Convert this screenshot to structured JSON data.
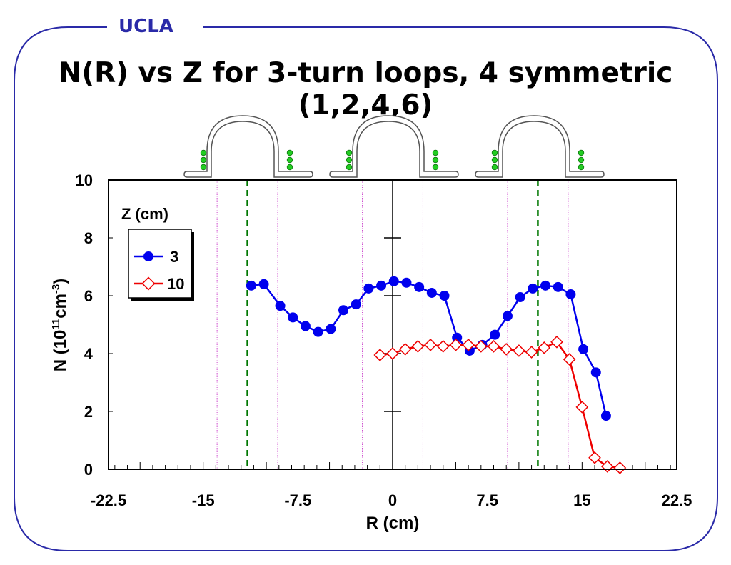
{
  "header": {
    "org_label": "UCLA",
    "title": "N(R) vs Z for 3-turn loops, 4 symmetric (1,2,4,6)"
  },
  "colors": {
    "frame": "#2a2aa8",
    "series_3": "#0000ee",
    "series_10": "#ee0000",
    "guide_green": "#007700",
    "guide_magenta": "#cc44cc",
    "loop_dots": "#22cc22"
  },
  "icons": [
    "loop-antenna-icon",
    "loop-antenna-icon",
    "loop-antenna-icon"
  ],
  "chart_data": {
    "type": "line",
    "xlabel": "R (cm)",
    "ylabel_main": "N (10",
    "ylabel_sup1": "11",
    "ylabel_mid": "cm",
    "ylabel_sup2": "-3",
    "ylabel_end": ")",
    "xlim": [
      -22.5,
      22.5
    ],
    "ylim": [
      0,
      10
    ],
    "x_ticks": [
      {
        "value": -22.5,
        "label": "-22.5"
      },
      {
        "value": -15,
        "label": "-15"
      },
      {
        "value": -7.5,
        "label": "-7.5"
      },
      {
        "value": 0,
        "label": "0"
      },
      {
        "value": 7.5,
        "label": "7.5"
      },
      {
        "value": 15,
        "label": "15"
      },
      {
        "value": 22.5,
        "label": "22.5"
      }
    ],
    "y_ticks": [
      {
        "value": 0,
        "label": "0"
      },
      {
        "value": 2,
        "label": "2"
      },
      {
        "value": 4,
        "label": "4"
      },
      {
        "value": 6,
        "label": "6"
      },
      {
        "value": 8,
        "label": "8"
      },
      {
        "value": 10,
        "label": "10"
      }
    ],
    "legend": {
      "title": "Z (cm)",
      "placement": "top-left"
    },
    "vertical_guides_dashed": [
      -11.5,
      11.5
    ],
    "vertical_guides_dotted": [
      -13.9,
      -9.1,
      -2.4,
      2.4,
      9.1,
      13.9
    ],
    "series": [
      {
        "name": "3",
        "marker": "filled-circle",
        "x": [
          -11.2,
          -10.2,
          -8.9,
          -7.9,
          -6.9,
          -5.9,
          -4.9,
          -3.9,
          -2.9,
          -1.9,
          -0.9,
          0.1,
          1.1,
          2.1,
          3.1,
          4.1,
          5.1,
          6.1,
          7.1,
          8.1,
          9.1,
          10.1,
          11.1,
          12.1,
          13.1,
          14.1,
          15.1,
          16.1,
          16.9
        ],
        "y": [
          6.35,
          6.4,
          5.65,
          5.25,
          4.95,
          4.75,
          4.85,
          5.5,
          5.7,
          6.25,
          6.35,
          6.5,
          6.45,
          6.3,
          6.1,
          6.0,
          4.55,
          4.1,
          4.3,
          4.65,
          5.3,
          5.95,
          6.25,
          6.35,
          6.3,
          6.05,
          4.15,
          3.35,
          1.85
        ]
      },
      {
        "name": "10",
        "marker": "open-diamond",
        "x": [
          -1.0,
          0.0,
          1.0,
          2.0,
          3.0,
          4.0,
          5.0,
          6.0,
          7.0,
          8.0,
          9.0,
          10.0,
          11.0,
          12.0,
          13.0,
          14.0,
          15.0,
          16.0,
          17.0,
          18.0
        ],
        "y": [
          3.95,
          4.0,
          4.15,
          4.25,
          4.3,
          4.25,
          4.3,
          4.3,
          4.25,
          4.25,
          4.15,
          4.1,
          4.05,
          4.2,
          4.4,
          3.8,
          2.15,
          0.4,
          0.1,
          0.05
        ]
      }
    ]
  }
}
